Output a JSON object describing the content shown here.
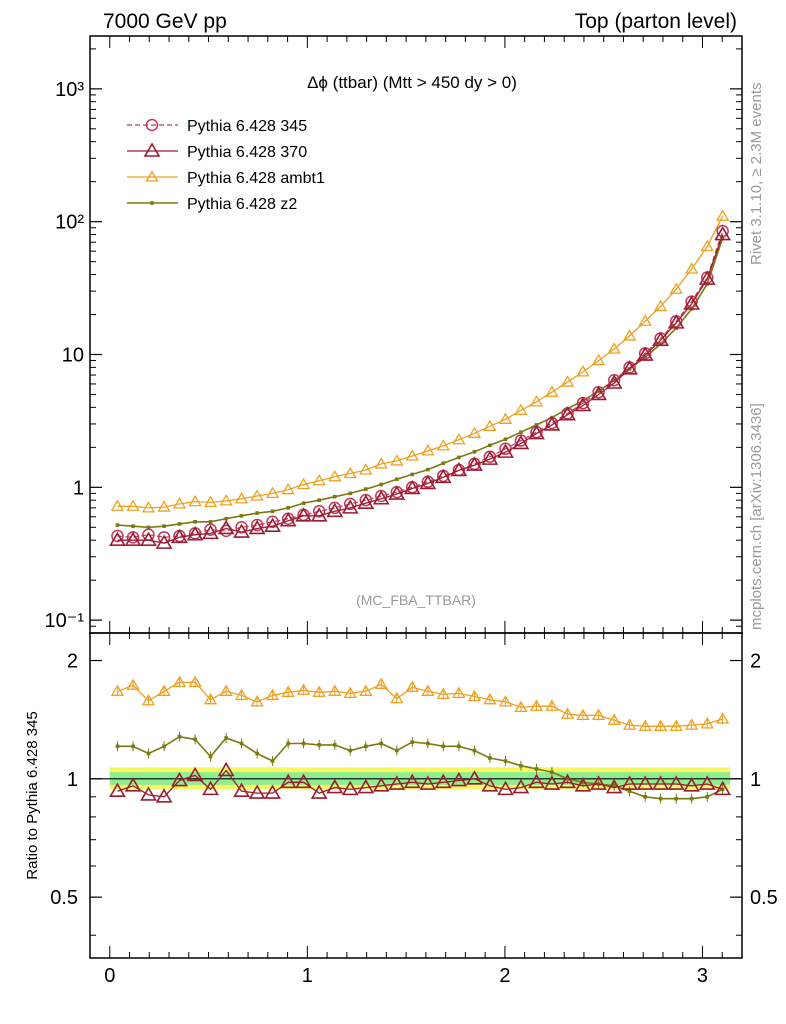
{
  "header": {
    "left": "7000 GeV pp",
    "right": "Top (parton level)"
  },
  "side_labels": {
    "rivet": "Rivet 3.1.10, ≥ 2.3M events",
    "mcplots": "mcplots.cern.ch [arXiv:1306.3436]"
  },
  "watermark": "(MC_FBA_TTBAR)",
  "colors": {
    "p345": "#c0395a",
    "p370": "#9b1b30",
    "ambt1": "#f0a020",
    "z2": "#7a7a12",
    "ref_band_inner": "#90ee90",
    "ref_band_outer": "#f8f860"
  },
  "chart_data": [
    {
      "type": "line",
      "title": "Δϕ (ttbar) (Mtt > 450 dy > 0)",
      "xlim": [
        -0.1,
        3.2
      ],
      "ylim": [
        0.08,
        2500
      ],
      "yscale": "log",
      "ytick_labels": [
        "10⁻¹",
        "1",
        "10",
        "10²",
        "10³"
      ],
      "ytick_values": [
        0.1,
        1,
        10,
        100,
        1000
      ],
      "legend_position": "top-left",
      "x": [
        0.039,
        0.118,
        0.196,
        0.275,
        0.353,
        0.432,
        0.51,
        0.589,
        0.667,
        0.746,
        0.824,
        0.903,
        0.981,
        1.06,
        1.139,
        1.217,
        1.296,
        1.374,
        1.453,
        1.531,
        1.61,
        1.688,
        1.767,
        1.846,
        1.924,
        2.003,
        2.081,
        2.16,
        2.238,
        2.317,
        2.395,
        2.474,
        2.553,
        2.631,
        2.71,
        2.788,
        2.867,
        2.945,
        3.024,
        3.102
      ],
      "series": [
        {
          "name": "Pythia 6.428 345",
          "key": "p345",
          "values": [
            0.43,
            0.42,
            0.44,
            0.42,
            0.43,
            0.45,
            0.48,
            0.47,
            0.5,
            0.52,
            0.55,
            0.58,
            0.62,
            0.66,
            0.7,
            0.75,
            0.8,
            0.86,
            0.92,
            1.0,
            1.1,
            1.22,
            1.35,
            1.5,
            1.7,
            1.95,
            2.25,
            2.6,
            3.05,
            3.6,
            4.3,
            5.2,
            6.4,
            8.0,
            10.2,
            13.2,
            17.8,
            25.0,
            38.0,
            85.0
          ]
        },
        {
          "name": "Pythia 6.428 370",
          "key": "p370",
          "values": [
            0.4,
            0.4,
            0.4,
            0.38,
            0.42,
            0.44,
            0.45,
            0.49,
            0.46,
            0.49,
            0.51,
            0.56,
            0.61,
            0.61,
            0.66,
            0.7,
            0.76,
            0.82,
            0.89,
            0.98,
            1.07,
            1.19,
            1.34,
            1.47,
            1.63,
            1.84,
            2.14,
            2.54,
            2.95,
            3.52,
            4.13,
            5.0,
            6.1,
            7.8,
            9.9,
            12.8,
            17.3,
            24.0,
            37.0,
            80.0
          ]
        },
        {
          "name": "Pythia 6.428 ambt1",
          "key": "ambt1",
          "values": [
            0.72,
            0.72,
            0.7,
            0.71,
            0.75,
            0.78,
            0.77,
            0.79,
            0.82,
            0.86,
            0.9,
            0.96,
            1.05,
            1.12,
            1.2,
            1.27,
            1.35,
            1.5,
            1.58,
            1.72,
            1.88,
            2.05,
            2.28,
            2.55,
            2.88,
            3.25,
            3.8,
            4.4,
            5.2,
            6.2,
            7.4,
            9.0,
            11.0,
            13.8,
            17.8,
            23.0,
            31.0,
            44.0,
            65.0,
            110.0
          ]
        },
        {
          "name": "Pythia 6.428 z2",
          "key": "z2",
          "values": [
            0.52,
            0.51,
            0.5,
            0.51,
            0.53,
            0.55,
            0.55,
            0.58,
            0.61,
            0.64,
            0.66,
            0.7,
            0.76,
            0.8,
            0.85,
            0.9,
            0.97,
            1.05,
            1.15,
            1.25,
            1.36,
            1.52,
            1.68,
            1.85,
            2.07,
            2.3,
            2.6,
            2.95,
            3.35,
            3.9,
            4.5,
            5.3,
            6.4,
            7.8,
            9.5,
            12.0,
            15.8,
            22.0,
            34.0,
            75.0
          ]
        }
      ]
    },
    {
      "type": "line",
      "xlabel": "",
      "ylabel": "Ratio to Pythia 6.428 345",
      "xlim": [
        -0.1,
        3.2
      ],
      "ylim": [
        0.35,
        2.35
      ],
      "yscale": "log",
      "ytick_labels": [
        "0.5",
        "1",
        "2"
      ],
      "ytick_values": [
        0.5,
        1,
        2
      ],
      "xtick_labels": [
        "0",
        "1",
        "2",
        "3"
      ],
      "xtick_values": [
        0,
        1,
        2,
        3
      ],
      "reference_line": 1,
      "series": [
        {
          "name": "Pythia 6.428 370",
          "key": "p370",
          "values": [
            0.93,
            0.96,
            0.91,
            0.9,
            0.99,
            1.02,
            0.94,
            1.05,
            0.93,
            0.92,
            0.92,
            0.98,
            0.98,
            0.92,
            0.95,
            0.94,
            0.95,
            0.96,
            0.97,
            0.98,
            0.97,
            0.98,
            0.99,
            1.0,
            0.96,
            0.94,
            0.95,
            0.98,
            0.97,
            0.98,
            0.96,
            0.97,
            0.95,
            0.97,
            0.97,
            0.97,
            0.97,
            0.96,
            0.97,
            0.94
          ]
        },
        {
          "name": "Pythia 6.428 ambt1",
          "key": "ambt1",
          "values": [
            1.67,
            1.73,
            1.58,
            1.67,
            1.76,
            1.76,
            1.59,
            1.67,
            1.63,
            1.57,
            1.63,
            1.66,
            1.68,
            1.66,
            1.67,
            1.65,
            1.67,
            1.74,
            1.6,
            1.71,
            1.67,
            1.64,
            1.65,
            1.62,
            1.59,
            1.57,
            1.52,
            1.53,
            1.53,
            1.46,
            1.45,
            1.45,
            1.41,
            1.37,
            1.36,
            1.36,
            1.36,
            1.37,
            1.38,
            1.42
          ]
        },
        {
          "name": "Pythia 6.428 z2",
          "key": "z2",
          "values": [
            1.21,
            1.21,
            1.16,
            1.21,
            1.28,
            1.26,
            1.14,
            1.27,
            1.23,
            1.16,
            1.11,
            1.23,
            1.23,
            1.22,
            1.22,
            1.18,
            1.21,
            1.23,
            1.18,
            1.24,
            1.23,
            1.21,
            1.21,
            1.18,
            1.13,
            1.11,
            1.08,
            1.06,
            1.04,
            1.0,
            0.98,
            0.97,
            0.96,
            0.93,
            0.9,
            0.89,
            0.89,
            0.89,
            0.9,
            0.94
          ]
        }
      ]
    }
  ]
}
